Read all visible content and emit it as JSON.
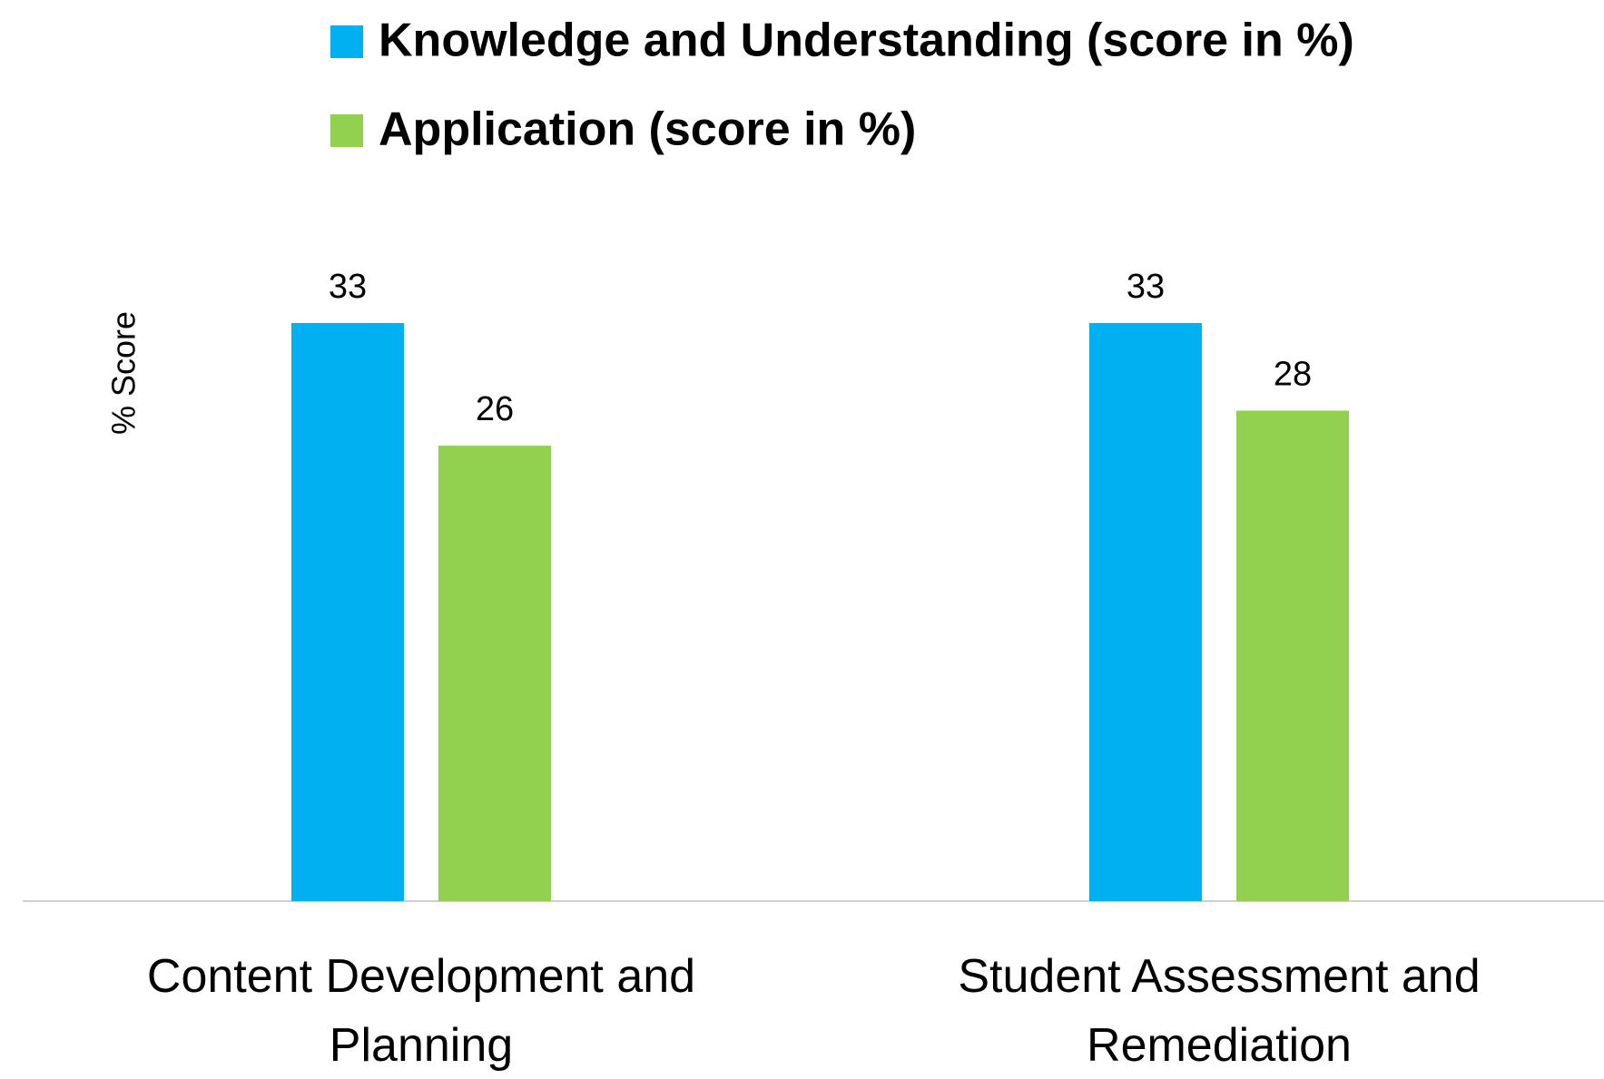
{
  "chart_data": {
    "type": "bar",
    "categories": [
      "Content Development and Planning",
      "Student Assessment and Remediation"
    ],
    "series": [
      {
        "name": "Knowledge and Understanding (score in %)",
        "color": "#00b0f0",
        "values": [
          33,
          33
        ]
      },
      {
        "name": "Application (score in %)",
        "color": "#92d050",
        "values": [
          26,
          28
        ]
      }
    ],
    "y_label": "% Score"
  }
}
